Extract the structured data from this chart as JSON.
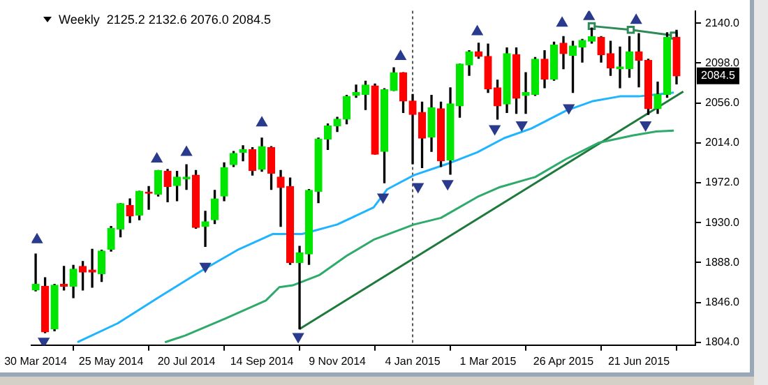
{
  "chart_data": {
    "type": "candlestick",
    "title": "Weekly  2125.2 2132.6 2076.0 2084.5",
    "x": [
      "2014-03-30",
      "2014-04-06",
      "2014-04-13",
      "2014-04-20",
      "2014-04-27",
      "2014-05-04",
      "2014-05-11",
      "2014-05-18",
      "2014-05-25",
      "2014-06-01",
      "2014-06-08",
      "2014-06-15",
      "2014-06-22",
      "2014-06-29",
      "2014-07-06",
      "2014-07-13",
      "2014-07-20",
      "2014-07-27",
      "2014-08-03",
      "2014-08-10",
      "2014-08-17",
      "2014-08-24",
      "2014-08-31",
      "2014-09-07",
      "2014-09-14",
      "2014-09-21",
      "2014-09-28",
      "2014-10-05",
      "2014-10-12",
      "2014-10-19",
      "2014-10-26",
      "2014-11-02",
      "2014-11-09",
      "2014-11-16",
      "2014-11-23",
      "2014-11-30",
      "2014-12-07",
      "2014-12-14",
      "2014-12-21",
      "2014-12-28",
      "2015-01-04",
      "2015-01-11",
      "2015-01-18",
      "2015-01-25",
      "2015-02-01",
      "2015-02-08",
      "2015-02-15",
      "2015-02-22",
      "2015-03-01",
      "2015-03-08",
      "2015-03-15",
      "2015-03-22",
      "2015-03-29",
      "2015-04-05",
      "2015-04-12",
      "2015-04-19",
      "2015-04-26",
      "2015-05-03",
      "2015-05-10",
      "2015-05-17",
      "2015-05-24",
      "2015-05-31",
      "2015-06-07",
      "2015-06-14",
      "2015-06-21",
      "2015-06-28",
      "2015-07-05",
      "2015-07-12",
      "2015-07-19"
    ],
    "ohlc": [
      [
        1859,
        1897,
        1858,
        1865
      ],
      [
        1863,
        1872,
        1814,
        1815
      ],
      [
        1818,
        1865,
        1816,
        1864
      ],
      [
        1865,
        1884,
        1859,
        1863
      ],
      [
        1863,
        1885,
        1851,
        1881
      ],
      [
        1884,
        1889,
        1859,
        1878
      ],
      [
        1880,
        1902,
        1862,
        1878
      ],
      [
        1876,
        1901,
        1868,
        1900
      ],
      [
        1902,
        1926,
        1900,
        1924
      ],
      [
        1923,
        1950,
        1915,
        1950
      ],
      [
        1948,
        1955,
        1930,
        1937
      ],
      [
        1938,
        1963,
        1933,
        1963
      ],
      [
        1962,
        1968,
        1944,
        1961
      ],
      [
        1960,
        1985,
        1958,
        1985
      ],
      [
        1984,
        1986,
        1952,
        1968
      ],
      [
        1969,
        1984,
        1953,
        1978
      ],
      [
        1976,
        1991,
        1965,
        1978
      ],
      [
        1980,
        1985,
        1924,
        1925
      ],
      [
        1926,
        1942,
        1905,
        1931
      ],
      [
        1933,
        1964,
        1929,
        1955
      ],
      [
        1958,
        1993,
        1953,
        1988
      ],
      [
        1991,
        2005,
        1989,
        2003
      ],
      [
        2004,
        2011,
        1995,
        2007
      ],
      [
        2007,
        2009,
        1980,
        1985
      ],
      [
        1986,
        2019,
        1984,
        2010
      ],
      [
        2009,
        2010,
        1965,
        1982
      ],
      [
        1978,
        1985,
        1926,
        1967
      ],
      [
        1968,
        1977,
        1886,
        1888
      ],
      [
        1888,
        1905,
        1818,
        1898
      ],
      [
        1897,
        1965,
        1886,
        1964
      ],
      [
        1963,
        2019,
        1951,
        2018
      ],
      [
        2018,
        2034,
        2007,
        2032
      ],
      [
        2032,
        2041,
        2026,
        2039
      ],
      [
        2039,
        2064,
        2034,
        2063
      ],
      [
        2064,
        2075,
        2062,
        2067
      ],
      [
        2065,
        2079,
        2049,
        2075
      ],
      [
        2074,
        2076,
        2002,
        2002
      ],
      [
        2005,
        2071,
        1972,
        2070
      ],
      [
        2069,
        2093,
        2069,
        2088
      ],
      [
        2088,
        2088,
        2046,
        2058
      ],
      [
        2058,
        2065,
        1992,
        2044
      ],
      [
        2046,
        2057,
        1988,
        2019
      ],
      [
        2020,
        2064,
        2005,
        2051
      ],
      [
        2050,
        2057,
        1989,
        1995
      ],
      [
        1996,
        2072,
        1981,
        2055
      ],
      [
        2053,
        2097,
        2041,
        2097
      ],
      [
        2096,
        2111,
        2085,
        2110
      ],
      [
        2110,
        2119,
        2103,
        2105
      ],
      [
        2105,
        2118,
        2067,
        2071
      ],
      [
        2072,
        2080,
        2039,
        2053
      ],
      [
        2055,
        2114,
        2046,
        2108
      ],
      [
        2107,
        2114,
        2045,
        2061
      ],
      [
        2064,
        2088,
        2045,
        2067
      ],
      [
        2065,
        2104,
        2064,
        2102
      ],
      [
        2102,
        2111,
        2072,
        2081
      ],
      [
        2081,
        2120,
        2080,
        2117
      ],
      [
        2119,
        2126,
        2092,
        2108
      ],
      [
        2106,
        2121,
        2067,
        2116
      ],
      [
        2115,
        2123,
        2099,
        2122
      ],
      [
        2121,
        2135,
        2119,
        2126
      ],
      [
        2125,
        2126,
        2099,
        2107
      ],
      [
        2108,
        2121,
        2085,
        2093
      ],
      [
        2092,
        2115,
        2072,
        2094
      ],
      [
        2092,
        2126,
        2083,
        2110
      ],
      [
        2110,
        2129,
        2073,
        2101
      ],
      [
        2101,
        2102,
        2044,
        2050
      ],
      [
        2050,
        2078,
        2045,
        2065
      ],
      [
        2065,
        2130,
        2062,
        2125
      ],
      [
        2125.2,
        2132.6,
        2076.0,
        2084.5
      ]
    ],
    "colors": [
      "#00e600",
      "#ff0000",
      "#00e600",
      "#ff0000",
      "#00e600",
      "#ff0000",
      "#ff0000",
      "#00e600",
      "#00e600",
      "#00e600",
      "#ff0000",
      "#00e600",
      "#ff0000",
      "#00e600",
      "#ff0000",
      "#00e600",
      "#00e600",
      "#ff0000",
      "#00e600",
      "#00e600",
      "#00e600",
      "#00e600",
      "#00e600",
      "#ff0000",
      "#00e600",
      "#ff0000",
      "#ff0000",
      "#ff0000",
      "#00e600",
      "#00e600",
      "#00e600",
      "#00e600",
      "#00e600",
      "#00e600",
      "#00e600",
      "#00e600",
      "#ff0000",
      "#00e600",
      "#00e600",
      "#ff0000",
      "#ff0000",
      "#ff0000",
      "#00e600",
      "#ff0000",
      "#00e600",
      "#00e600",
      "#00e600",
      "#ff0000",
      "#ff0000",
      "#ff0000",
      "#00e600",
      "#ff0000",
      "#00e600",
      "#00e600",
      "#ff0000",
      "#00e600",
      "#ff0000",
      "#00e600",
      "#00e600",
      "#00e600",
      "#ff0000",
      "#ff0000",
      "#00e600",
      "#00e600",
      "#ff0000",
      "#ff0000",
      "#00e600",
      "#00e600",
      "#ff0000"
    ],
    "series": [
      {
        "type": "line",
        "color": "#1eb4ff",
        "x": [
          "2014-04-30",
          "2014-05-30",
          "2014-06-29",
          "2014-08-01",
          "2014-08-28",
          "2014-09-22",
          "2014-10-14",
          "2014-11-09",
          "2014-12-06",
          "2014-12-16",
          "2015-01-05",
          "2015-01-30",
          "2015-02-21",
          "2015-03-13",
          "2015-04-02",
          "2015-04-28",
          "2015-05-18",
          "2015-06-07",
          "2015-06-21",
          "2015-07-04",
          "2015-07-17"
        ],
        "values": [
          1804,
          1824,
          1851,
          1880,
          1902,
          1918,
          1918,
          1928,
          1946,
          1965,
          1980,
          1992,
          2004,
          2019,
          2029,
          2048,
          2058,
          2063,
          2063,
          2065,
          2067
        ]
      },
      {
        "type": "line",
        "color": "#2eaa6a",
        "x": [
          "2014-07-04",
          "2014-07-19",
          "2014-08-18",
          "2014-09-17",
          "2014-09-27",
          "2014-10-07",
          "2014-10-27",
          "2014-11-16",
          "2014-12-06",
          "2015-01-05",
          "2015-01-25",
          "2015-02-21",
          "2015-03-09",
          "2015-04-05",
          "2015-04-28",
          "2015-05-22",
          "2015-06-17",
          "2015-07-04",
          "2015-07-17"
        ],
        "values": [
          1804,
          1811,
          1829,
          1848,
          1862,
          1864,
          1875,
          1895,
          1912,
          1928,
          1935,
          1957,
          1967,
          1978,
          1997,
          2014,
          2022,
          2026,
          2027
        ]
      },
      {
        "type": "line",
        "color": "#1e7a3c",
        "x": [
          "2014-10-12",
          "2015-07-24"
        ],
        "values": [
          1818,
          2068
        ]
      },
      {
        "type": "line",
        "color": "#2e8b57",
        "marker": "square",
        "x": [
          "2015-05-17",
          "2015-06-15",
          "2015-07-17"
        ],
        "values": [
          2137,
          2133,
          2127
        ]
      },
      {
        "type": "scatter",
        "color": "#2a3a8c",
        "marker": "triangle",
        "x": [
          "2014-03-31",
          "2014-06-28",
          "2014-07-20",
          "2014-09-14",
          "2014-12-26",
          "2015-02-21",
          "2015-04-25",
          "2015-05-15",
          "2015-06-19"
        ],
        "values": [
          1912,
          1997,
          2004,
          2035,
          2105,
          2131,
          2140,
          2147,
          2143
        ]
      },
      {
        "type": "scatter",
        "color": "#2a3a8c",
        "marker": "triangle",
        "x": [
          "2014-04-05",
          "2014-08-03",
          "2014-10-11",
          "2014-12-13",
          "2015-01-08",
          "2015-01-30",
          "2015-03-06",
          "2015-03-26",
          "2015-04-30",
          "2015-06-26"
        ],
        "values": [
          1805,
          1884,
          1810,
          1957,
          1968,
          1971,
          2029,
          2033,
          2051,
          2033
        ]
      }
    ],
    "xlim": [
      "2014-03-27",
      "2015-08-02"
    ],
    "xticks": [
      {
        "value": "2014-03-30",
        "label": "30 Mar 2014"
      },
      {
        "value": "2014-05-25",
        "label": "25 May 2014"
      },
      {
        "value": "2014-07-20",
        "label": "20 Jul 2014"
      },
      {
        "value": "2014-09-14",
        "label": "14 Sep 2014"
      },
      {
        "value": "2014-11-09",
        "label": "9 Nov 2014"
      },
      {
        "value": "2015-01-04",
        "label": "4 Jan 2015"
      },
      {
        "value": "2015-03-01",
        "label": "1 Mar 2015"
      },
      {
        "value": "2015-04-26",
        "label": "26 Apr 2015"
      },
      {
        "value": "2015-06-21",
        "label": "21 Jun 2015"
      }
    ],
    "ylim": [
      1801,
      2153
    ],
    "yticks": [
      {
        "value": 1804,
        "label": "1804.0"
      },
      {
        "value": 1846,
        "label": "1846.0"
      },
      {
        "value": 1888,
        "label": "1888.0"
      },
      {
        "value": 1930,
        "label": "1930.0"
      },
      {
        "value": 1972,
        "label": "1972.0"
      },
      {
        "value": 2014,
        "label": "2014.0"
      },
      {
        "value": 2056,
        "label": "2056.0"
      },
      {
        "value": 2098,
        "label": "2098.0"
      },
      {
        "value": 2140,
        "label": "2140.0"
      }
    ],
    "grid": false,
    "ref_lines": [
      {
        "axis": "x",
        "value": "2015-01-04",
        "color": "#555555",
        "line_style": "dotted"
      }
    ],
    "annotations": [
      "2084.5"
    ]
  }
}
